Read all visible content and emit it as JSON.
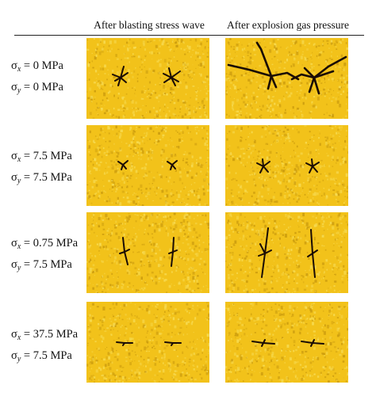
{
  "columns": {
    "stress": "After blasting stress wave",
    "gas": "After explosion gas pressure"
  },
  "rows": [
    {
      "sx_symbol": "σ",
      "sx_sub": "x",
      "sx_value": "= 0 MPa",
      "sy_symbol": "σ",
      "sy_sub": "y",
      "sy_value": "= 0 MPa"
    },
    {
      "sx_symbol": "σ",
      "sx_sub": "x",
      "sx_value": "= 7.5 MPa",
      "sy_symbol": "σ",
      "sy_sub": "y",
      "sy_value": "= 7.5 MPa"
    },
    {
      "sx_symbol": "σ",
      "sx_sub": "x",
      "sx_value": "= 0.75 MPa",
      "sy_symbol": "σ",
      "sy_sub": "y",
      "sy_value": "= 7.5 MPa"
    },
    {
      "sx_symbol": "σ",
      "sx_sub": "x",
      "sx_value": "= 37.5 MPa",
      "sy_symbol": "σ",
      "sy_sub": "y",
      "sy_value": "= 7.5 MPa"
    }
  ],
  "colors": {
    "background_yellow": "#f2c21a",
    "speckle_light": "#f7dc55",
    "speckle_dark": "#c99a0e",
    "crack": "#1a0c05"
  }
}
